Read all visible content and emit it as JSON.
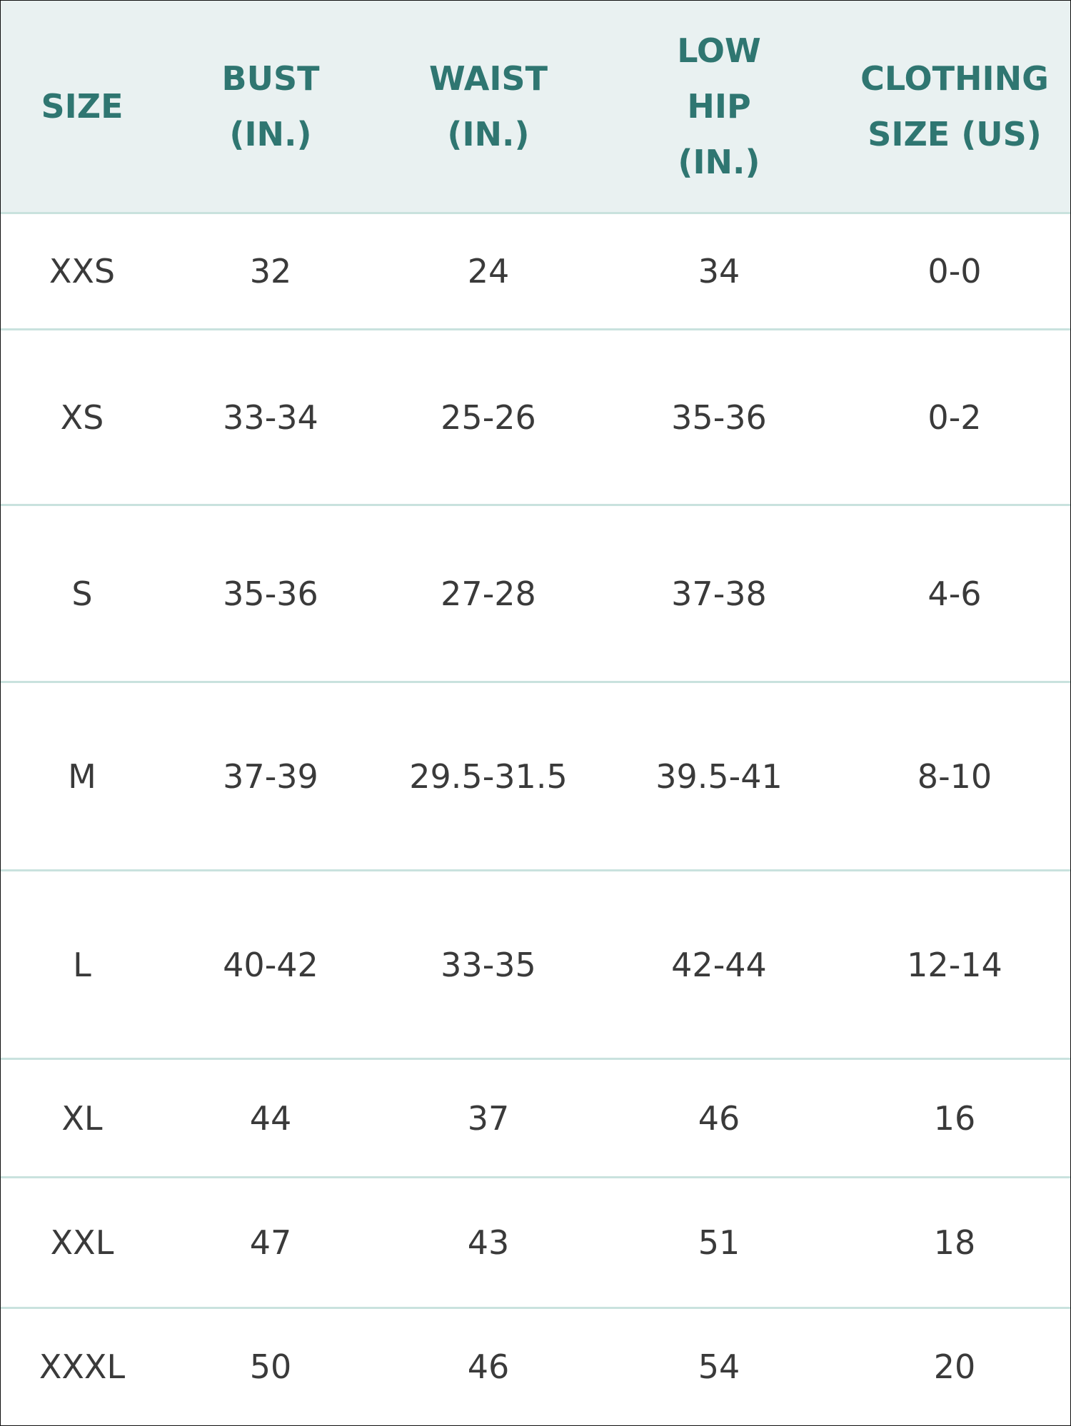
{
  "table": {
    "header": [
      "SIZE",
      "BUST (IN.)",
      "WAIST (IN.)",
      "LOW HIP (IN.)",
      "CLOTHING SIZE (US)"
    ],
    "rows": [
      [
        "XXS",
        "32",
        "24",
        "34",
        "0-0"
      ],
      [
        "XS",
        "33-34",
        "25-26",
        "35-36",
        "0-2"
      ],
      [
        "S",
        "35-36",
        "27-28",
        "37-38",
        "4-6"
      ],
      [
        "M",
        "37-39",
        "29.5-31.5",
        "39.5-41",
        "8-10"
      ],
      [
        "L",
        "40-42",
        "33-35",
        "42-44",
        "12-14"
      ],
      [
        "XL",
        "44",
        "37",
        "46",
        "16"
      ],
      [
        "XXL",
        "47",
        "43",
        "51",
        "18"
      ],
      [
        "XXXL",
        "50",
        "46",
        "54",
        "20"
      ]
    ]
  }
}
